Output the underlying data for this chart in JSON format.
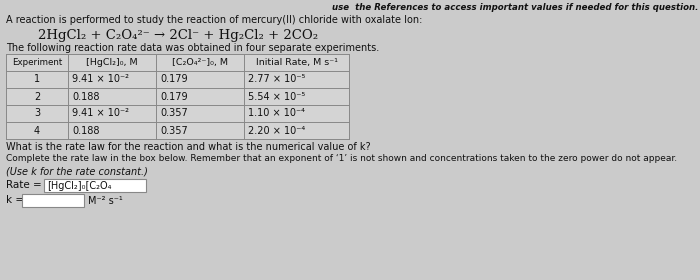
{
  "top_text": "use  the References to access important values if needed for this question.",
  "intro": "A reaction is performed to study the reaction of mercury(II) chloride with oxalate Ion:",
  "equation_parts": [
    {
      "text": "2HgCl",
      "style": "normal"
    },
    {
      "text": "2",
      "style": "sub"
    },
    {
      "text": " + C",
      "style": "normal"
    },
    {
      "text": "2",
      "style": "sub"
    },
    {
      "text": "O",
      "style": "normal"
    },
    {
      "text": "4",
      "style": "sub"
    },
    {
      "text": "2−",
      "style": "sup"
    },
    {
      "text": " → 2Cl",
      "style": "normal"
    },
    {
      "text": "−",
      "style": "sup"
    },
    {
      "text": " + Hg",
      "style": "normal"
    },
    {
      "text": "2",
      "style": "sub"
    },
    {
      "text": "Cl",
      "style": "normal"
    },
    {
      "text": "2",
      "style": "sub"
    },
    {
      "text": " + 2CO",
      "style": "normal"
    },
    {
      "text": "2",
      "style": "sub"
    }
  ],
  "table_intro": "The following reaction rate data was obtained in four separate experiments.",
  "rows": [
    [
      "1",
      "9.41 × 10⁻²",
      "0.179",
      "2.77 × 10⁻⁵"
    ],
    [
      "2",
      "0.188",
      "0.179",
      "5.54 × 10⁻⁵"
    ],
    [
      "3",
      "9.41 × 10⁻²",
      "0.357",
      "1.10 × 10⁻⁴"
    ],
    [
      "4",
      "0.188",
      "0.357",
      "2.20 × 10⁻⁴"
    ]
  ],
  "question1": "What is the rate law for the reaction and what is the numerical value of k?",
  "question2": "Complete the rate law in the box below. Remember that an exponent of ‘1’ is not shown and concentrations taken to the zero power do not appear.",
  "use_k": "(Use k for the rate constant.)",
  "bg_color": "#cbcbcb",
  "table_line_color": "#888888",
  "table_bg": "#d8d8d8"
}
